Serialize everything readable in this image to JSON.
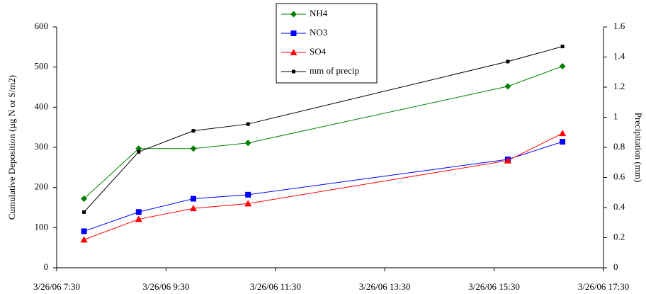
{
  "chart_data": {
    "type": "line",
    "y_label": "Cumulative Deposition (µg N or S/m2)",
    "y2_label": "Precipitation (mm)",
    "x": [
      "3/26/06 8:00",
      "3/26/06 9:00",
      "3/26/06 10:00",
      "3/26/06 11:00",
      "3/26/06 15:45",
      "3/26/06 16:45"
    ],
    "xlim": [
      "3/26/06 7:30",
      "3/26/06 17:30"
    ],
    "xticks": [
      "3/26/06 7:30",
      "3/26/06 9:30",
      "3/26/06 11:30",
      "3/26/06 13:30",
      "3/26/06 15:30",
      "3/26/06 17:30"
    ],
    "ylim": [
      0,
      600
    ],
    "yticks": [
      0,
      100,
      200,
      300,
      400,
      500,
      600
    ],
    "y2lim": [
      0,
      1.6
    ],
    "y2ticks": [
      0,
      0.2,
      0.4,
      0.6,
      0.8,
      1,
      1.2,
      1.4,
      1.6
    ],
    "series": [
      {
        "name": "NH4",
        "color": "#008000",
        "marker": "diamond",
        "values": [
          172,
          297,
          297,
          311,
          452,
          502
        ]
      },
      {
        "name": "NO3",
        "color": "#0000ff",
        "marker": "square",
        "values": [
          91,
          139,
          172,
          182,
          270,
          314
        ]
      },
      {
        "name": "SO4",
        "color": "#ff0000",
        "marker": "triangle",
        "values": [
          70,
          121,
          148,
          160,
          267,
          335
        ]
      },
      {
        "name": "mm of precip",
        "color": "#000000",
        "marker": "small-square",
        "axis": "y2",
        "values": [
          0.37,
          0.77,
          0.91,
          0.955,
          1.37,
          1.47
        ]
      }
    ]
  }
}
